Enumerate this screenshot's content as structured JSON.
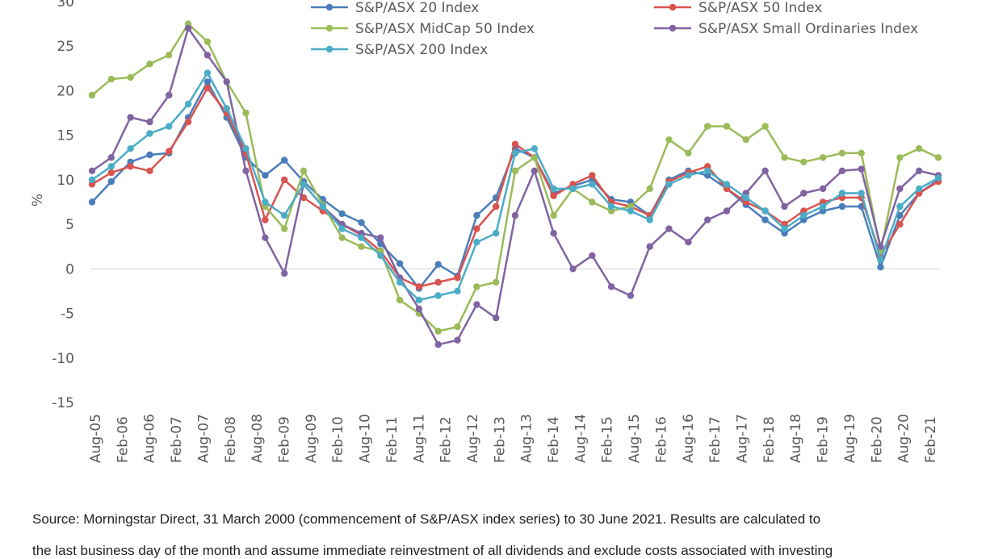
{
  "chart_data": {
    "type": "line",
    "title": "",
    "xlabel": "",
    "ylabel": "%",
    "ylim": [
      -15,
      30
    ],
    "yticks": [
      30,
      25,
      20,
      15,
      10,
      5,
      0,
      -5,
      -10,
      -15
    ],
    "x_tick_labels": [
      "Aug-05",
      "Feb-06",
      "Aug-06",
      "Feb-07",
      "Aug-07",
      "Feb-08",
      "Aug-08",
      "Feb-09",
      "Aug-09",
      "Feb-10",
      "Aug-10",
      "Feb-11",
      "Aug-11",
      "Feb-12",
      "Aug-12",
      "Feb-13",
      "Aug-13",
      "Feb-14",
      "Aug-14",
      "Feb-15",
      "Aug-15",
      "Feb-16",
      "Aug-16",
      "Feb-17",
      "Aug-17",
      "Feb-18",
      "Aug-18",
      "Feb-19",
      "Aug-19",
      "Feb-20",
      "Aug-20",
      "Feb-21"
    ],
    "zero_line": true,
    "grid": false,
    "legend_position": "top",
    "series": [
      {
        "name": "S&P/ASX 20 Index",
        "color": "#4a7ebb",
        "values": [
          7.5,
          9.8,
          12.0,
          12.8,
          13.0,
          17.0,
          21.0,
          17.0,
          12.5,
          10.5,
          12.2,
          9.8,
          7.8,
          6.2,
          5.2,
          2.8,
          0.6,
          -2.2,
          0.5,
          -0.8,
          6.0,
          8.0,
          13.5,
          12.5,
          8.5,
          9.3,
          10.0,
          7.8,
          7.5,
          6.0,
          10.0,
          11.0,
          10.5,
          9.0,
          7.2,
          5.5,
          4.0,
          5.5,
          6.5,
          7.0,
          7.0,
          0.2,
          6.0,
          8.5,
          10.0
        ]
      },
      {
        "name": "S&P/ASX 50 Index",
        "color": "#d9534f",
        "values": [
          9.5,
          10.8,
          11.5,
          11.0,
          13.2,
          16.5,
          20.3,
          17.5,
          13.0,
          5.5,
          10.0,
          8.0,
          6.5,
          5.0,
          3.8,
          2.0,
          -1.0,
          -2.0,
          -1.5,
          -1.0,
          4.5,
          7.0,
          14.0,
          12.5,
          8.2,
          9.5,
          10.5,
          7.5,
          7.0,
          6.0,
          9.8,
          10.8,
          11.5,
          9.0,
          7.5,
          6.5,
          5.0,
          6.5,
          7.5,
          8.0,
          8.0,
          1.5,
          5.0,
          8.5,
          9.8
        ]
      },
      {
        "name": "S&P/ASX MidCap 50 Index",
        "color": "#9bbb59",
        "values": [
          19.5,
          21.3,
          21.5,
          23.0,
          24.0,
          27.5,
          25.5,
          21.0,
          17.5,
          7.0,
          4.5,
          11.0,
          7.2,
          3.5,
          2.5,
          2.0,
          -3.5,
          -5.0,
          -7.0,
          -6.5,
          -2.0,
          -1.5,
          11.0,
          12.5,
          6.0,
          9.0,
          7.5,
          6.5,
          7.0,
          9.0,
          14.5,
          13.0,
          16.0,
          16.0,
          14.5,
          16.0,
          12.5,
          12.0,
          12.5,
          13.0,
          13.0,
          2.0,
          12.5,
          13.5,
          12.5
        ]
      },
      {
        "name": "S&P/ASX Small Ordinaries Index",
        "color": "#8064a2",
        "values": [
          11.0,
          12.5,
          17.0,
          16.5,
          19.5,
          27.0,
          24.0,
          21.0,
          11.0,
          3.5,
          -0.5,
          9.5,
          7.0,
          5.0,
          4.0,
          3.5,
          -1.0,
          -4.5,
          -8.5,
          -8.0,
          -4.0,
          -5.5,
          6.0,
          11.0,
          4.0,
          0.0,
          1.5,
          -2.0,
          -3.0,
          2.5,
          4.5,
          3.0,
          5.5,
          6.5,
          8.5,
          11.0,
          7.0,
          8.5,
          9.0,
          11.0,
          11.2,
          2.5,
          9.0,
          11.0,
          10.5
        ]
      },
      {
        "name": "S&P/ASX 200 Index",
        "color": "#4bacc6",
        "values": [
          10.0,
          11.5,
          13.5,
          15.2,
          16.0,
          18.5,
          22.0,
          18.0,
          13.5,
          7.5,
          6.0,
          9.5,
          7.0,
          4.5,
          3.5,
          1.5,
          -1.5,
          -3.5,
          -3.0,
          -2.5,
          3.0,
          4.0,
          13.0,
          13.5,
          9.0,
          9.0,
          9.5,
          7.0,
          6.5,
          5.5,
          9.5,
          10.5,
          11.0,
          9.5,
          8.0,
          6.5,
          4.5,
          6.0,
          7.0,
          8.5,
          8.5,
          1.0,
          7.0,
          9.0,
          10.2
        ]
      }
    ]
  },
  "footnote": {
    "line1": "Source: Morningstar Direct, 31 March 2000 (commencement of S&P/ASX index series) to 30 June 2021. Results are calculated to",
    "line2": "the last business day of the month and assume immediate reinvestment of all dividends and exclude costs associated with investing"
  }
}
